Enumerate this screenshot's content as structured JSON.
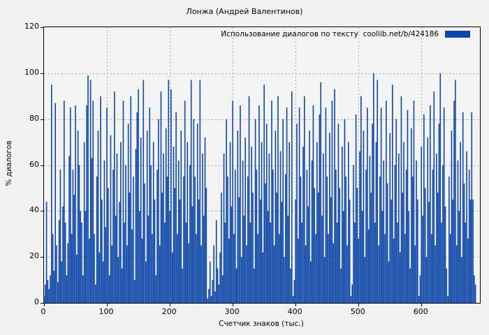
{
  "colors": {
    "bar": "#0d47a8",
    "background": "#f2f2f2",
    "plot_background": "#f3f3f3",
    "grid": "#a9a9a9",
    "border": "#000000",
    "text": "#000000"
  },
  "chart_data": {
    "type": "bar",
    "title": "Лонжа (Андрей Валентинов)",
    "series_name": "Использование диалогов по тексту  coollib.net/b/424186",
    "xlabel": "Счетчик знаков (тыс.)",
    "ylabel": "% диалогов",
    "xlim": [
      0,
      693
    ],
    "ylim": [
      0,
      120
    ],
    "xticks": [
      0,
      100,
      200,
      300,
      400,
      500,
      600
    ],
    "yticks": [
      0,
      20,
      40,
      60,
      80,
      100,
      120
    ],
    "grid": true,
    "legend_position": "top-right",
    "x_step": 2,
    "values": [
      3,
      8,
      44,
      10,
      6,
      12,
      95,
      30,
      14,
      87,
      25,
      9,
      36,
      58,
      18,
      42,
      88,
      35,
      12,
      26,
      64,
      85,
      30,
      58,
      47,
      86,
      21,
      75,
      60,
      40,
      35,
      12,
      70,
      40,
      86,
      99,
      28,
      97,
      63,
      88,
      30,
      8,
      55,
      75,
      22,
      90,
      45,
      18,
      62,
      33,
      85,
      50,
      12,
      73,
      25,
      58,
      92,
      38,
      65,
      20,
      44,
      70,
      15,
      88,
      35,
      60,
      25,
      78,
      48,
      90,
      32,
      55,
      10,
      67,
      83,
      93,
      40,
      72,
      28,
      97,
      52,
      18,
      75,
      38,
      85,
      60,
      30,
      70,
      45,
      12,
      58,
      80,
      25,
      92,
      48,
      65,
      35,
      76,
      55,
      97,
      40,
      93,
      22,
      68,
      50,
      83,
      30,
      62,
      45,
      75,
      15,
      55,
      88,
      35,
      70,
      26,
      60,
      97,
      42,
      80,
      55,
      30,
      78,
      45,
      97,
      25,
      65,
      38,
      72,
      50,
      2,
      6,
      18,
      3,
      10,
      25,
      5,
      36,
      15,
      8,
      22,
      48,
      12,
      65,
      35,
      80,
      55,
      28,
      70,
      42,
      88,
      30,
      58,
      15,
      75,
      46,
      86,
      20,
      62,
      38,
      72,
      25,
      55,
      90,
      35,
      68,
      48,
      15,
      80,
      58,
      30,
      86,
      45,
      70,
      22,
      95,
      52,
      78,
      40,
      65,
      35,
      88,
      58,
      25,
      75,
      48,
      90,
      30,
      66,
      44,
      80,
      20,
      56,
      85,
      38,
      70,
      15,
      92,
      3,
      10,
      45,
      78,
      28,
      85,
      55,
      35,
      68,
      90,
      25,
      58,
      42,
      75,
      18,
      62,
      86,
      50,
      30,
      70,
      48,
      82,
      96,
      38,
      65,
      20,
      85,
      55,
      30,
      74,
      46,
      88,
      26,
      93,
      58,
      35,
      78,
      50,
      15,
      68,
      40,
      80,
      55,
      25,
      70,
      45,
      3,
      8,
      60,
      35,
      82,
      50,
      28,
      66,
      90,
      40,
      75,
      20,
      58,
      85,
      32,
      64,
      48,
      78,
      100,
      35,
      70,
      97,
      25,
      55,
      85,
      40,
      62,
      30,
      88,
      52,
      18,
      74,
      45,
      95,
      28,
      60,
      80,
      35,
      65,
      22,
      90,
      48,
      70,
      30,
      58,
      84,
      40,
      15,
      76,
      55,
      88,
      25,
      62,
      45,
      3,
      12,
      68,
      38,
      82,
      50,
      20,
      72,
      44,
      86,
      30,
      58,
      92,
      25,
      65,
      48,
      78,
      100,
      35,
      60,
      85,
      42,
      15,
      3,
      55,
      30,
      75,
      45,
      88,
      97,
      25,
      62,
      40,
      70,
      20,
      83,
      52,
      35,
      66,
      28,
      58,
      45,
      83,
      45,
      12,
      8
    ]
  }
}
